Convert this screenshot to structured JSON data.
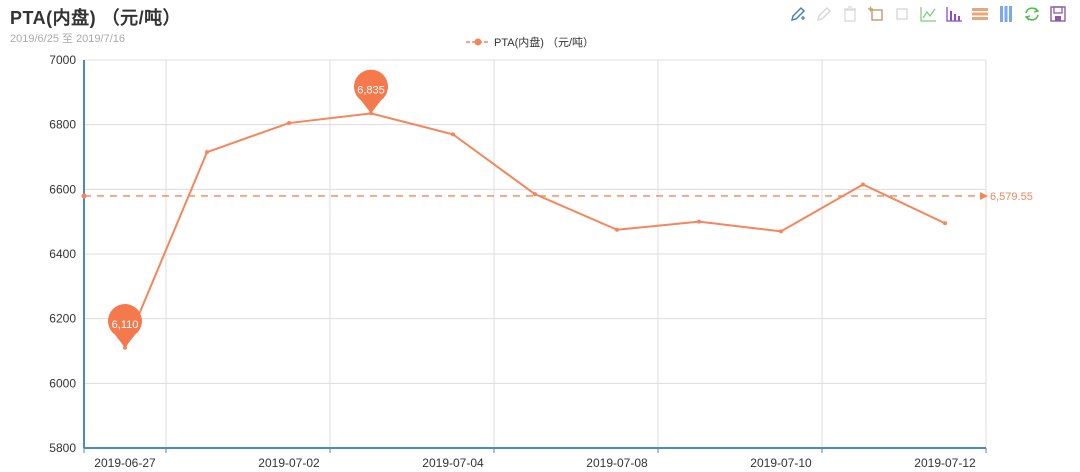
{
  "header": {
    "title": "PTA(内盘) （元/吨）",
    "subtitle": "2019/6/25 至 2019/7/16"
  },
  "legend": {
    "label": "PTA(内盘) （元/吨）",
    "color": "#f5855a"
  },
  "toolbox": [
    {
      "name": "mark-icon",
      "color": "#1e90ff"
    },
    {
      "name": "mark-undo-icon",
      "color": "#cccccc"
    },
    {
      "name": "mark-clear-icon",
      "color": "#cccccc"
    },
    {
      "name": "data-zoom-icon",
      "color": "#c49a6c"
    },
    {
      "name": "data-zoom-reset-icon",
      "color": "#cccccc"
    },
    {
      "name": "line-chart-icon",
      "color": "#32cd32"
    },
    {
      "name": "bar-chart-icon",
      "color": "#9a32cd"
    },
    {
      "name": "stack-icon",
      "color": "#e3a06d"
    },
    {
      "name": "tiled-icon",
      "color": "#6495ed"
    },
    {
      "name": "restore-icon",
      "color": "#22bb22"
    },
    {
      "name": "save-image-icon",
      "color": "#8a5ca8"
    }
  ],
  "chart_data": {
    "type": "line",
    "title": "PTA(内盘) （元/吨）",
    "subtitle": "2019/6/25 至 2019/7/16",
    "xlabel": "",
    "ylabel": "",
    "categories": [
      "2019-06-27",
      "",
      "2019-07-02",
      "",
      "2019-07-04",
      "",
      "2019-07-08",
      "",
      "2019-07-10",
      "",
      "2019-07-12"
    ],
    "visible_x_tick_labels": [
      "2019-06-27",
      "2019-07-02",
      "2019-07-04",
      "2019-07-08",
      "2019-07-10",
      "2019-07-12"
    ],
    "series": [
      {
        "name": "PTA(内盘) （元/吨）",
        "color": "#f5855a",
        "values": [
          6110,
          6715,
          6805,
          6835,
          6770,
          6585,
          6475,
          6500,
          6470,
          6615,
          6495
        ]
      }
    ],
    "mark_points": [
      {
        "type": "min",
        "index": 0,
        "label": "6,110"
      },
      {
        "type": "max",
        "index": 3,
        "label": "6,835"
      }
    ],
    "mark_line": {
      "type": "average",
      "value": 6579.55,
      "label": "6,579.55"
    },
    "ylim": [
      5800,
      7000
    ],
    "y_ticks": [
      5800,
      6000,
      6200,
      6400,
      6600,
      6800,
      7000
    ],
    "grid": true,
    "legend_position": "top-center"
  }
}
